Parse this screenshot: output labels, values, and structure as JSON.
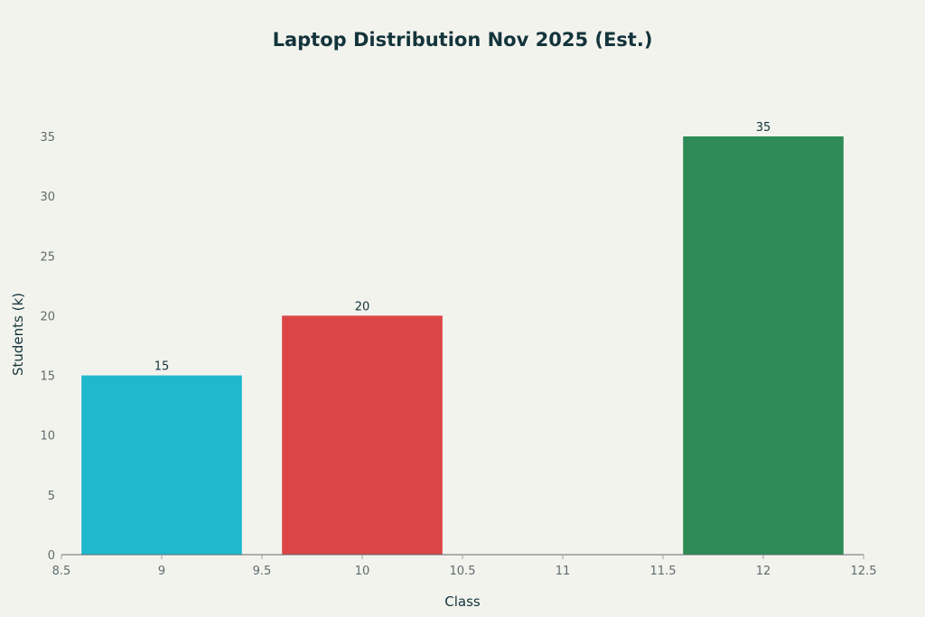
{
  "chart_data": {
    "type": "bar",
    "title": "Laptop Distribution Nov 2025 (Est.)",
    "xlabel": "Class",
    "ylabel": "Students (k)",
    "x": [
      9,
      10,
      12
    ],
    "values": [
      15,
      20,
      35
    ],
    "data_labels": [
      "15",
      "20",
      "35"
    ],
    "colors": [
      "#1FB8CD",
      "#DB4545",
      "#2E8B57"
    ],
    "bar_width": 0.8,
    "xlim": [
      8.5,
      12.5
    ],
    "ylim": [
      0,
      35
    ],
    "x_ticks": [
      "8.5",
      "9",
      "9.5",
      "10",
      "10.5",
      "11",
      "11.5",
      "12",
      "12.5"
    ],
    "y_ticks": [
      "0",
      "5",
      "10",
      "15",
      "20",
      "25",
      "30",
      "35"
    ],
    "grid": false,
    "legend": "none"
  }
}
